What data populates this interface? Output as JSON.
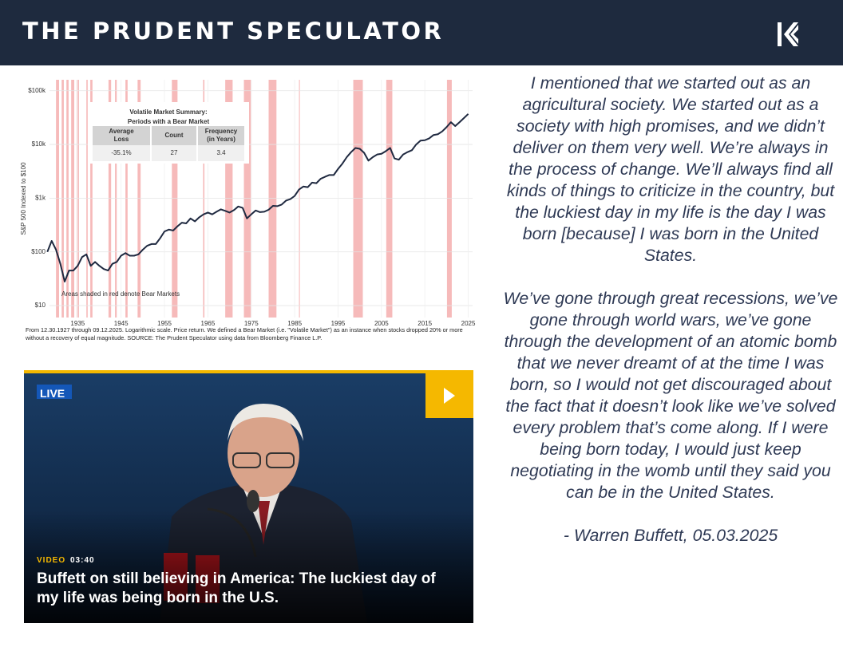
{
  "header": {
    "title": "THE PRUDENT SPECULATOR"
  },
  "chart_data": {
    "type": "line",
    "y_label": "S&P 500 Indexed to $100",
    "annotation": "Areas shaded in red denote Bear Markets",
    "footnote": "From 12.30.1927 through 09.12.2025. Logarithmic scale. Price return. We defined a Bear Market (i.e. \"Volatile Market\") as an instance when stocks dropped 20% or more without a recovery of equal magnitude. SOURCE: The Prudent Speculator using data from Bloomberg Finance L.P.",
    "log_scale": true,
    "grid": true,
    "xlim": [
      1928.5,
      2026
    ],
    "ylim": [
      6,
      160000
    ],
    "xticks": [
      1935,
      1945,
      1955,
      1965,
      1975,
      1985,
      1995,
      2005,
      2015,
      2025
    ],
    "yticks": [
      {
        "value": 10,
        "label": "$10"
      },
      {
        "value": 100,
        "label": "$100"
      },
      {
        "value": 1000,
        "label": "$1k"
      },
      {
        "value": 10000,
        "label": "$10k"
      },
      {
        "value": 100000,
        "label": "$100k"
      }
    ],
    "x": [
      1928,
      1929,
      1930,
      1931,
      1932,
      1933,
      1934,
      1935,
      1936,
      1937,
      1938,
      1939,
      1940,
      1941,
      1942,
      1943,
      1944,
      1945,
      1946,
      1947,
      1948,
      1949,
      1950,
      1951,
      1952,
      1953,
      1954,
      1955,
      1956,
      1957,
      1958,
      1959,
      1960,
      1961,
      1962,
      1963,
      1964,
      1965,
      1966,
      1967,
      1968,
      1969,
      1970,
      1971,
      1972,
      1973,
      1974,
      1975,
      1976,
      1977,
      1978,
      1979,
      1980,
      1981,
      1982,
      1983,
      1984,
      1985,
      1986,
      1987,
      1988,
      1989,
      1990,
      1991,
      1992,
      1993,
      1994,
      1995,
      1996,
      1997,
      1998,
      1999,
      2000,
      2001,
      2002,
      2003,
      2004,
      2005,
      2006,
      2007,
      2008,
      2009,
      2010,
      2011,
      2012,
      2013,
      2014,
      2015,
      2016,
      2017,
      2018,
      2019,
      2020,
      2021,
      2022,
      2023,
      2024,
      2025
    ],
    "series": [
      {
        "color": "#1f2940",
        "values": [
          100,
          160,
          110,
          60,
          28,
          45,
          45,
          55,
          80,
          90,
          55,
          65,
          55,
          48,
          45,
          60,
          65,
          85,
          95,
          85,
          85,
          90,
          110,
          130,
          140,
          140,
          180,
          240,
          260,
          250,
          300,
          350,
          340,
          420,
          370,
          440,
          500,
          540,
          500,
          560,
          620,
          580,
          540,
          600,
          700,
          660,
          420,
          500,
          590,
          550,
          560,
          610,
          720,
          710,
          760,
          900,
          960,
          1100,
          1450,
          1650,
          1600,
          1950,
          1900,
          2300,
          2500,
          2700,
          2700,
          3500,
          4400,
          5800,
          7200,
          8600,
          8300,
          7000,
          5000,
          5800,
          6500,
          6700,
          7500,
          8600,
          5500,
          5200,
          6500,
          7200,
          7800,
          10000,
          11800,
          12000,
          13000,
          15000,
          15500,
          17500,
          21000,
          26000,
          22000,
          26000,
          31000,
          37000
        ]
      }
    ],
    "span_color": "#f5b3b3",
    "bear_markets": [
      [
        1930.0,
        1930.7
      ],
      [
        1931.3,
        1931.8
      ],
      [
        1932.4,
        1932.9
      ],
      [
        1933.5,
        1934.2
      ],
      [
        1934.8,
        1935.3
      ],
      [
        1937.0,
        1937.3
      ],
      [
        1937.9,
        1938.4
      ],
      [
        1942.1,
        1942.7
      ],
      [
        1943.6,
        1944.0
      ],
      [
        1946.0,
        1946.5
      ],
      [
        1948.8,
        1949.5
      ],
      [
        1956.7,
        1958.0
      ],
      [
        1963.9,
        1964.2
      ],
      [
        1969.0,
        1970.7
      ],
      [
        1973.3,
        1974.9
      ],
      [
        1979.0,
        1980.8
      ],
      [
        1986.0,
        1986.2
      ],
      [
        1998.5,
        2000.7
      ],
      [
        2006.1,
        2007.5
      ],
      [
        2020.1,
        2021.2
      ]
    ],
    "summary": {
      "title": [
        "Volatile Market Summary:",
        "Periods with a Bear Market"
      ],
      "headers": [
        [
          "Average",
          "Loss"
        ],
        [
          "Count"
        ],
        [
          "Frequency",
          "(in Years)"
        ]
      ],
      "values": [
        "-35.1%",
        "27",
        "3.4"
      ]
    }
  },
  "video": {
    "live": "LIVE",
    "kind": "VIDEO",
    "duration": "03:40",
    "headline": "Buffett on still believing in America: The luckiest day of my life was being born in the U.S."
  },
  "quote": {
    "paragraphs": [
      "I mentioned that we started out as an agricultural society. We started out as a society with high promises, and we didn’t deliver on them very well. We’re always in the process of change. We’ll always find all kinds of things to criticize in the country, but the luckiest day in my life is the day I was born [because] I was born in the United States.",
      "We’ve gone through great recessions, we’ve gone through world wars, we’ve gone through the development of an atomic bomb that we never dreamt of at the time I was born, so I would not get discouraged about the fact that it doesn’t look like we’ve solved every problem that’s come along. If I were being born today, I would just keep negotiating in the womb until they said you can be in the United States."
    ],
    "attribution": "- Warren Buffett, 05.03.2025"
  }
}
